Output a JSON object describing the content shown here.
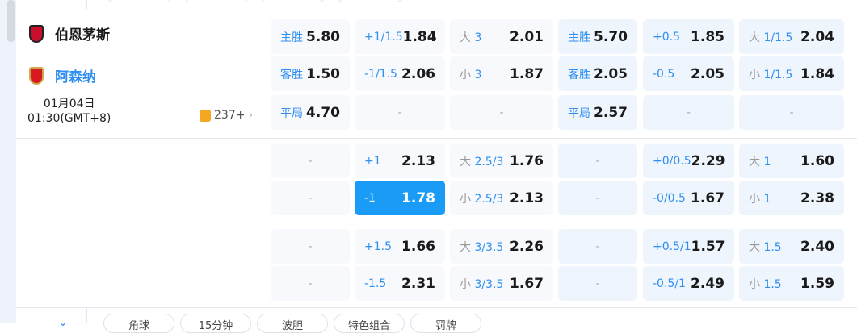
{
  "match": {
    "home": "伯恩茅斯",
    "away": "阿森纳",
    "date": "01月04日",
    "time": "01:30(GMT+8)",
    "count": "237+"
  },
  "colors": {
    "accent": "#2f8ff0",
    "selected": "#1a9bf5"
  },
  "rows": [
    [
      {
        "lab": "主胜",
        "val": "5.80"
      },
      {
        "lab": "+1/1.5",
        "val": "1.84"
      },
      {
        "pre": "大",
        "lab": "3",
        "val": "2.01"
      },
      {
        "lab": "主胜",
        "val": "5.70"
      },
      {
        "lab": "+0.5",
        "val": "1.85"
      },
      {
        "pre": "大",
        "lab": "1/1.5",
        "val": "2.04"
      }
    ],
    [
      {
        "lab": "客胜",
        "val": "1.50"
      },
      {
        "lab": "-1/1.5",
        "val": "2.06"
      },
      {
        "pre": "小",
        "lab": "3",
        "val": "1.87"
      },
      {
        "lab": "客胜",
        "val": "2.05"
      },
      {
        "lab": "-0.5",
        "val": "2.05"
      },
      {
        "pre": "小",
        "lab": "1/1.5",
        "val": "1.84"
      }
    ],
    [
      {
        "lab": "平局",
        "val": "4.70"
      },
      {
        "dash": "-"
      },
      {
        "dash": "-"
      },
      {
        "lab": "平局",
        "val": "2.57"
      },
      {
        "dash": "-"
      },
      {
        "dash": "-"
      }
    ],
    [
      {
        "dash": "-"
      },
      {
        "lab": "+1",
        "val": "2.13"
      },
      {
        "pre": "大",
        "lab": "2.5/3",
        "val": "1.76"
      },
      {
        "dash": "-"
      },
      {
        "lab": "+0/0.5",
        "val": "2.29"
      },
      {
        "pre": "大",
        "lab": "1",
        "val": "1.60"
      }
    ],
    [
      {
        "dash": "-"
      },
      {
        "lab": "-1",
        "val": "1.78",
        "selected": true
      },
      {
        "pre": "小",
        "lab": "2.5/3",
        "val": "2.13"
      },
      {
        "dash": "-"
      },
      {
        "lab": "-0/0.5",
        "val": "1.67"
      },
      {
        "pre": "小",
        "lab": "1",
        "val": "2.38"
      }
    ],
    [
      {
        "dash": "-"
      },
      {
        "lab": "+1.5",
        "val": "1.66"
      },
      {
        "pre": "大",
        "lab": "3/3.5",
        "val": "2.26"
      },
      {
        "dash": "-"
      },
      {
        "lab": "+0.5/1",
        "val": "1.57"
      },
      {
        "pre": "大",
        "lab": "1.5",
        "val": "2.40"
      }
    ],
    [
      {
        "dash": "-"
      },
      {
        "lab": "-1.5",
        "val": "2.31"
      },
      {
        "pre": "小",
        "lab": "3/3.5",
        "val": "1.67"
      },
      {
        "dash": "-"
      },
      {
        "lab": "-0.5/1",
        "val": "2.49"
      },
      {
        "pre": "小",
        "lab": "1.5",
        "val": "1.59"
      }
    ]
  ],
  "bottom_tabs": [
    "角球",
    "15分钟",
    "波胆",
    "特色组合",
    "罚牌"
  ]
}
